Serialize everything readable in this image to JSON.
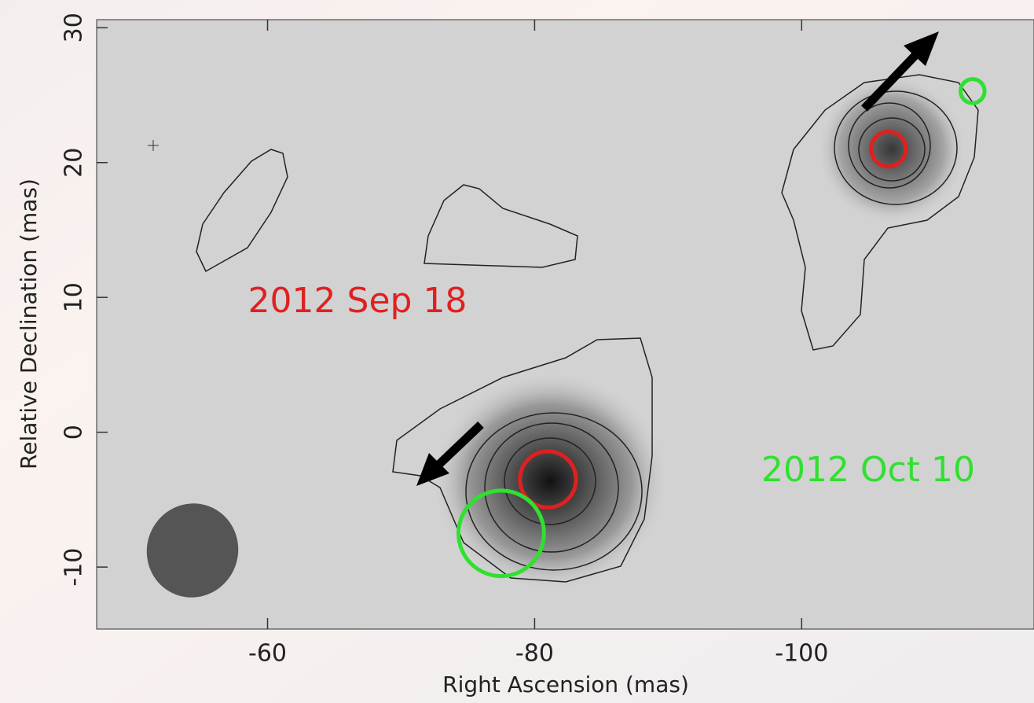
{
  "chart_data": {
    "type": "scatter",
    "x_label": "Right Ascension  (mas)",
    "y_label": "Relative Declination  (mas)",
    "xlim": [
      -47.2,
      -117.4
    ],
    "xticks": [
      -60,
      -80,
      -100
    ],
    "ylim": [
      -14.6,
      30.6
    ],
    "yticks": [
      -10,
      0,
      10,
      20,
      30
    ],
    "series": [
      {
        "name": "2012 Sep 18",
        "color": "#e02020",
        "x": [
          -81,
          -106.5
        ],
        "values": [
          -3.5,
          21
        ],
        "sizes": [
          2.1,
          1.3
        ]
      },
      {
        "name": "2012 Oct 10",
        "color": "#30e030",
        "x": [
          -77.5,
          -112.8
        ],
        "values": [
          -7.5,
          25.3
        ],
        "sizes": [
          3.2,
          0.9
        ]
      }
    ]
  }
}
